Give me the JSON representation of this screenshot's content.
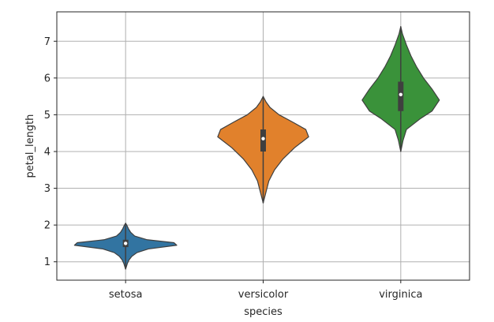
{
  "chart_data": {
    "type": "violin",
    "xlabel": "species",
    "ylabel": "petal_length",
    "categories": [
      "setosa",
      "versicolor",
      "virginica"
    ],
    "ylim": [
      0.5,
      7.8
    ],
    "yticks": [
      1,
      2,
      3,
      4,
      5,
      6,
      7
    ],
    "grid": true,
    "violins": [
      {
        "category": "setosa",
        "color": "#3274a1",
        "min": 0.8,
        "max": 2.05,
        "q1": 1.4,
        "median": 1.5,
        "q3": 1.6,
        "profile": [
          [
            0.8,
            0.0
          ],
          [
            0.95,
            0.03
          ],
          [
            1.05,
            0.06
          ],
          [
            1.15,
            0.11
          ],
          [
            1.25,
            0.2
          ],
          [
            1.35,
            0.4
          ],
          [
            1.45,
            0.9
          ],
          [
            1.52,
            0.85
          ],
          [
            1.6,
            0.38
          ],
          [
            1.7,
            0.16
          ],
          [
            1.8,
            0.09
          ],
          [
            1.9,
            0.05
          ],
          [
            2.0,
            0.02
          ],
          [
            2.05,
            0.0
          ]
        ]
      },
      {
        "category": "versicolor",
        "color": "#e1812c",
        "min": 2.6,
        "max": 5.5,
        "q1": 4.0,
        "median": 4.35,
        "q3": 4.6,
        "profile": [
          [
            2.6,
            0.0
          ],
          [
            2.9,
            0.05
          ],
          [
            3.2,
            0.1
          ],
          [
            3.5,
            0.2
          ],
          [
            3.8,
            0.35
          ],
          [
            4.1,
            0.55
          ],
          [
            4.4,
            0.8
          ],
          [
            4.6,
            0.75
          ],
          [
            4.8,
            0.52
          ],
          [
            5.0,
            0.28
          ],
          [
            5.2,
            0.12
          ],
          [
            5.35,
            0.05
          ],
          [
            5.5,
            0.0
          ]
        ]
      },
      {
        "category": "virginica",
        "color": "#3a923a",
        "min": 4.0,
        "max": 7.4,
        "q1": 5.1,
        "median": 5.55,
        "q3": 5.9,
        "profile": [
          [
            4.0,
            0.0
          ],
          [
            4.3,
            0.04
          ],
          [
            4.6,
            0.1
          ],
          [
            4.9,
            0.35
          ],
          [
            5.1,
            0.55
          ],
          [
            5.4,
            0.68
          ],
          [
            5.7,
            0.55
          ],
          [
            6.0,
            0.4
          ],
          [
            6.3,
            0.28
          ],
          [
            6.6,
            0.18
          ],
          [
            6.9,
            0.1
          ],
          [
            7.2,
            0.03
          ],
          [
            7.4,
            0.0
          ]
        ]
      }
    ]
  }
}
